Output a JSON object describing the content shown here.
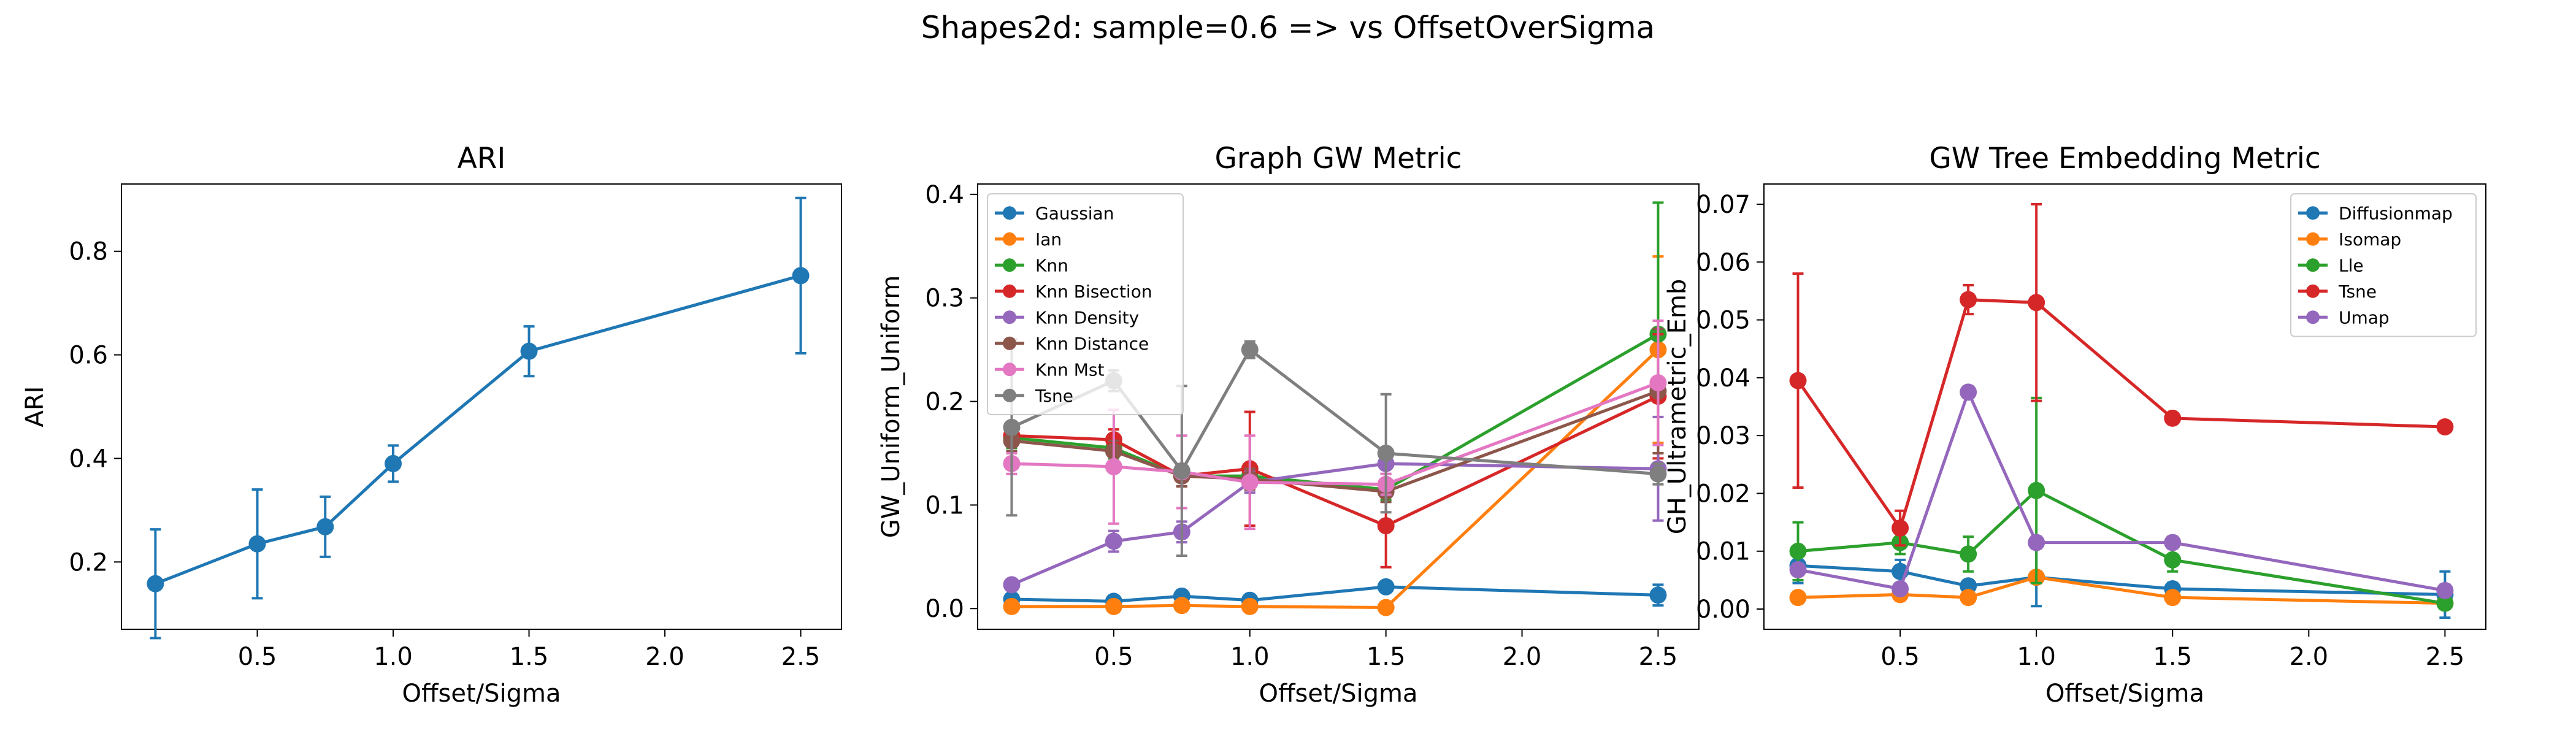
{
  "figure": {
    "suptitle": "Shapes2d: sample=0.6 => vs OffsetOverSigma"
  },
  "chart_data": [
    {
      "type": "line",
      "title": "ARI",
      "xlabel": "Offset/Sigma",
      "ylabel": "ARI",
      "xlim": [
        0.0,
        2.65
      ],
      "ylim": [
        0.07,
        0.93
      ],
      "xticks": [
        0.5,
        1.0,
        1.5,
        2.0,
        2.5
      ],
      "xtick_labels": [
        "0.5",
        "1.0",
        "1.5",
        "2.0",
        "2.5"
      ],
      "yticks": [
        0.2,
        0.4,
        0.6,
        0.8
      ],
      "ytick_labels": [
        "0.2",
        "0.4",
        "0.6",
        "0.8"
      ],
      "legend": null,
      "x": [
        0.125,
        0.5,
        0.75,
        1.0,
        1.5,
        2.5
      ],
      "series": [
        {
          "color": "#1f77b4",
          "values": [
            0.158,
            0.235,
            0.268,
            0.39,
            0.607,
            0.753
          ],
          "errors": [
            0.105,
            0.105,
            0.058,
            0.035,
            0.048,
            0.15
          ]
        }
      ]
    },
    {
      "type": "line",
      "title": "Graph GW Metric",
      "xlabel": "Offset/Sigma",
      "ylabel": "GW_Uniform_Uniform",
      "xlim": [
        0.0,
        2.65
      ],
      "ylim": [
        -0.02,
        0.41
      ],
      "xticks": [
        0.5,
        1.0,
        1.5,
        2.0,
        2.5
      ],
      "xtick_labels": [
        "0.5",
        "1.0",
        "1.5",
        "2.0",
        "2.5"
      ],
      "yticks": [
        0.0,
        0.1,
        0.2,
        0.3,
        0.4
      ],
      "ytick_labels": [
        "0.0",
        "0.1",
        "0.2",
        "0.3",
        "0.4"
      ],
      "legend": "upper-left",
      "x": [
        0.125,
        0.5,
        0.75,
        1.0,
        1.5,
        2.5
      ],
      "series": [
        {
          "name": "Gaussian",
          "color": "#1f77b4",
          "values": [
            0.009,
            0.007,
            0.012,
            0.008,
            0.021,
            0.013
          ],
          "errors": [
            0.003,
            0.003,
            0.003,
            0.003,
            0.004,
            0.01
          ]
        },
        {
          "name": "Ian",
          "color": "#ff7f0e",
          "values": [
            0.002,
            0.002,
            0.003,
            0.002,
            0.001,
            0.25
          ],
          "errors": [
            0.001,
            0.001,
            0.001,
            0.001,
            0.001,
            0.09
          ]
        },
        {
          "name": "Knn",
          "color": "#2ca02c",
          "values": [
            0.165,
            0.155,
            0.128,
            0.128,
            0.115,
            0.265
          ],
          "errors": [
            0.01,
            0.01,
            0.01,
            0.01,
            0.01,
            0.127
          ]
        },
        {
          "name": "Knn Bisection",
          "color": "#d62728",
          "values": [
            0.167,
            0.163,
            0.128,
            0.135,
            0.08,
            0.205
          ],
          "errors": [
            0.01,
            0.01,
            0.01,
            0.055,
            0.04,
            0.06
          ]
        },
        {
          "name": "Knn Density",
          "color": "#9467bd",
          "values": [
            0.023,
            0.065,
            0.074,
            0.122,
            0.14,
            0.135
          ],
          "errors": [
            0.005,
            0.01,
            0.01,
            0.01,
            0.01,
            0.05
          ]
        },
        {
          "name": "Knn Distance",
          "color": "#8c564b",
          "values": [
            0.162,
            0.152,
            0.128,
            0.125,
            0.113,
            0.21
          ],
          "errors": [
            0.01,
            0.01,
            0.01,
            0.01,
            0.01,
            0.06
          ]
        },
        {
          "name": "Knn Mst",
          "color": "#e377c2",
          "values": [
            0.14,
            0.137,
            0.132,
            0.122,
            0.12,
            0.218
          ],
          "errors": [
            0.01,
            0.055,
            0.035,
            0.045,
            0.01,
            0.06
          ]
        },
        {
          "name": "Tsne",
          "color": "#7f7f7f",
          "values": [
            0.175,
            0.22,
            0.133,
            0.25,
            0.15,
            0.13
          ],
          "errors": [
            0.085,
            0.01,
            0.082,
            0.008,
            0.057,
            0.01
          ]
        }
      ]
    },
    {
      "type": "line",
      "title": "GW Tree Embedding Metric",
      "xlabel": "Offset/Sigma",
      "ylabel": "GH_Ultrametric_Emb",
      "xlim": [
        0.0,
        2.65
      ],
      "ylim": [
        -0.0035,
        0.0735
      ],
      "xticks": [
        0.5,
        1.0,
        1.5,
        2.0,
        2.5
      ],
      "xtick_labels": [
        "0.5",
        "1.0",
        "1.5",
        "2.0",
        "2.5"
      ],
      "yticks": [
        0.0,
        0.01,
        0.02,
        0.03,
        0.04,
        0.05,
        0.06,
        0.07
      ],
      "ytick_labels": [
        "0.00",
        "0.01",
        "0.02",
        "0.03",
        "0.04",
        "0.05",
        "0.06",
        "0.07"
      ],
      "legend": "upper-right",
      "x": [
        0.125,
        0.5,
        0.75,
        1.0,
        1.5,
        2.5
      ],
      "series": [
        {
          "name": "Diffusionmap",
          "color": "#1f77b4",
          "values": [
            0.0075,
            0.0065,
            0.004,
            0.0055,
            0.0035,
            0.0025
          ],
          "errors": [
            0.003,
            0.002,
            0.001,
            0.005,
            0.001,
            0.004
          ]
        },
        {
          "name": "Isomap",
          "color": "#ff7f0e",
          "values": [
            0.002,
            0.0025,
            0.002,
            0.0055,
            0.002,
            0.001
          ],
          "errors": [
            0.001,
            0.001,
            0.001,
            0.001,
            0.001,
            0.001
          ]
        },
        {
          "name": "Lle",
          "color": "#2ca02c",
          "values": [
            0.01,
            0.0115,
            0.0095,
            0.0205,
            0.0085,
            0.001
          ],
          "errors": [
            0.005,
            0.002,
            0.003,
            0.016,
            0.002,
            0.001
          ]
        },
        {
          "name": "Tsne",
          "color": "#d62728",
          "values": [
            0.0395,
            0.014,
            0.0535,
            0.053,
            0.033,
            0.0315
          ],
          "errors": [
            0.0185,
            0.003,
            0.0025,
            0.017,
            0.0005,
            0.0005
          ]
        },
        {
          "name": "Umap",
          "color": "#9467bd",
          "values": [
            0.0068,
            0.0035,
            0.0375,
            0.0115,
            0.0115,
            0.0032
          ],
          "errors": [
            0.001,
            0.001,
            0.001,
            0.001,
            0.001,
            0.001
          ]
        }
      ]
    }
  ]
}
